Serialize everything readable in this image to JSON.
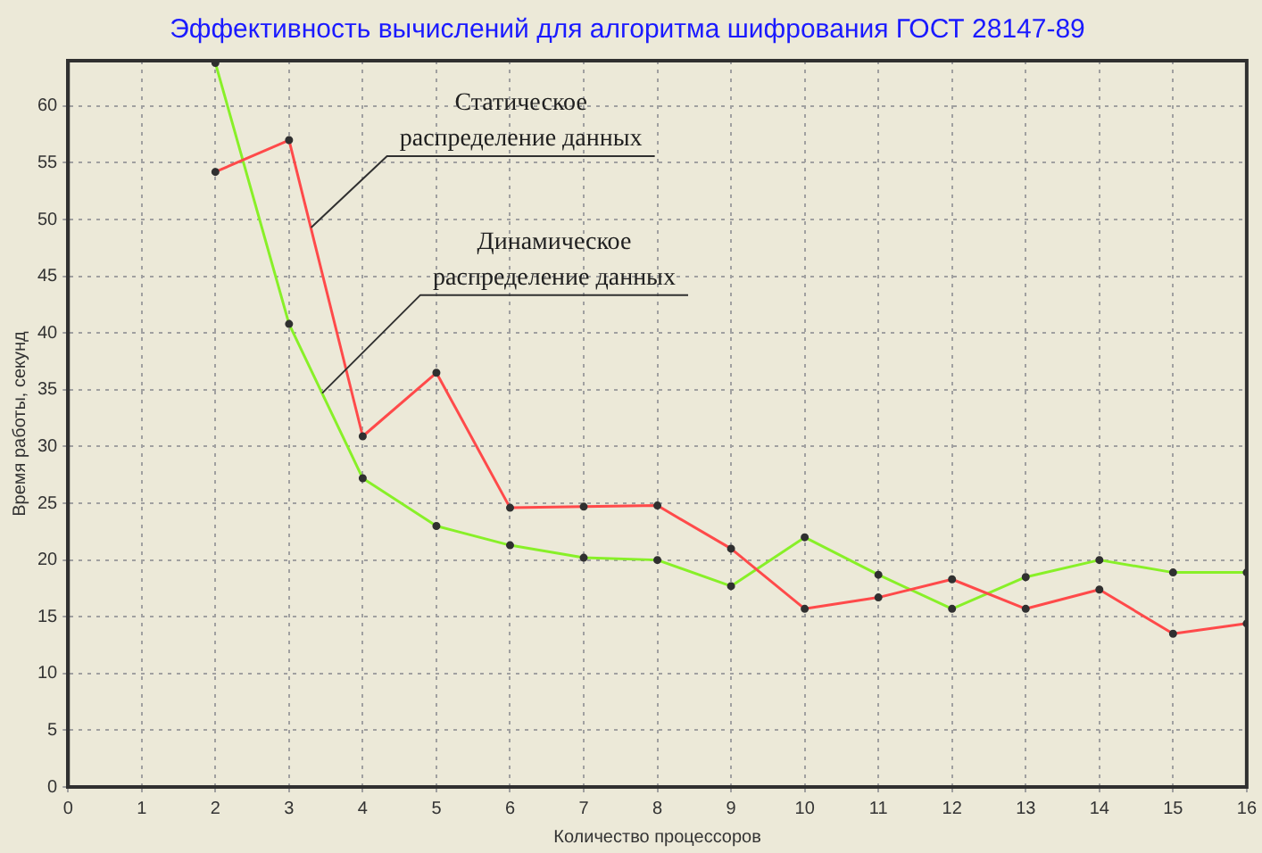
{
  "chart_data": {
    "type": "line",
    "title": "Эффективность вычислений для алгоритма шифрования ГОСТ 28147-89",
    "xlabel": "Количество процессоров",
    "ylabel": "Время работы, секунд",
    "x": [
      2,
      3,
      4,
      5,
      6,
      7,
      8,
      9,
      10,
      11,
      12,
      13,
      14,
      15,
      16
    ],
    "series": [
      {
        "color": "#ff4a4a",
        "values": [
          54.2,
          57.0,
          30.9,
          36.5,
          24.6,
          24.7,
          24.8,
          21.0,
          15.7,
          16.7,
          18.3,
          15.7,
          17.4,
          13.5,
          14.4
        ]
      },
      {
        "color": "#88f028",
        "values": [
          63.8,
          40.8,
          27.2,
          23.0,
          21.3,
          20.2,
          20.0,
          17.7,
          22.0,
          18.7,
          15.7,
          18.5,
          20.0,
          18.9,
          18.9
        ]
      }
    ],
    "xlim": [
      0,
      16
    ],
    "xticks": [
      0,
      1,
      2,
      3,
      4,
      5,
      6,
      7,
      8,
      9,
      10,
      11,
      12,
      13,
      14,
      15,
      16
    ],
    "ylim": [
      0,
      64
    ],
    "yticks": [
      0,
      5,
      10,
      15,
      20,
      25,
      30,
      35,
      40,
      45,
      50,
      55,
      60
    ],
    "annotations": [
      {
        "text": "Статическое распределение данных",
        "x": 3.3,
        "y": 49.3
      },
      {
        "text": "Динамическое распределение данных",
        "x": 3.45,
        "y": 34.7
      }
    ],
    "grid": true,
    "legend": false,
    "marker": "circle",
    "line_style": "solid"
  }
}
